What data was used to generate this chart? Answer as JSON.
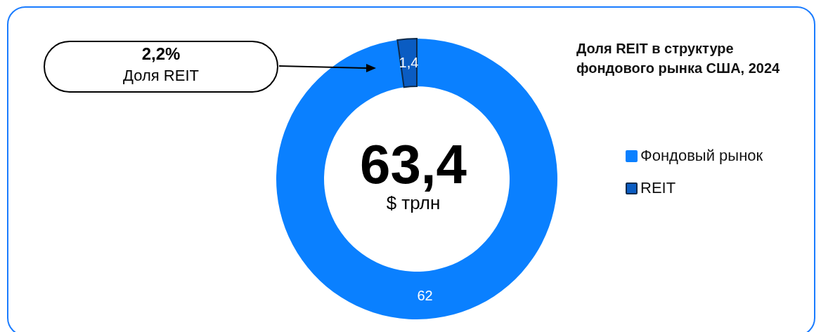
{
  "chart_data": {
    "type": "donut",
    "title": "Доля REIT в структуре фондового рынка США, 2024",
    "categories": [
      "Фондовый рынок",
      "REIT"
    ],
    "values": [
      62,
      1.4
    ],
    "value_labels": [
      "62",
      "1,4"
    ],
    "colors": [
      "#0a80ff",
      "#0a5cc2"
    ],
    "legend": "right",
    "annotations": [
      "2,2%",
      "Доля REIT",
      "63,4",
      "$ трлн"
    ]
  }
}
